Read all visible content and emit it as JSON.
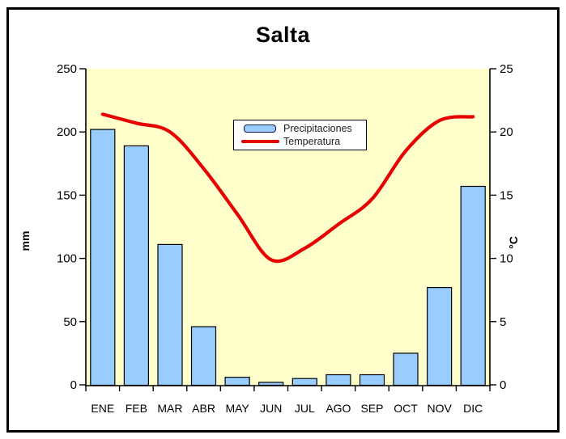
{
  "chart_data": {
    "type": "bar",
    "subtype": "bar-line-combo-climograph",
    "title": "Salta",
    "categories": [
      "ENE",
      "FEB",
      "MAR",
      "ABR",
      "MAY",
      "JUN",
      "JUL",
      "AGO",
      "SEP",
      "OCT",
      "NOV",
      "DIC"
    ],
    "series": [
      {
        "name": "Precipitaciones",
        "type": "bar",
        "axis": "left",
        "unit": "mm",
        "values": [
          202,
          189,
          111,
          46,
          6,
          2,
          5,
          8,
          8,
          25,
          77,
          157
        ]
      },
      {
        "name": "Temperatura",
        "type": "line",
        "axis": "right",
        "unit": "°C",
        "values": [
          21.4,
          20.7,
          20.0,
          17.1,
          13.5,
          9.9,
          10.8,
          12.7,
          14.7,
          18.5,
          20.9,
          21.2
        ]
      }
    ],
    "left_axis": {
      "label": "mm",
      "min": 0,
      "max": 250,
      "ticks": [
        0,
        50,
        100,
        150,
        200,
        250
      ]
    },
    "right_axis": {
      "label": "°C",
      "min": 0,
      "max": 25,
      "ticks": [
        0,
        5,
        10,
        15,
        20,
        25
      ]
    },
    "legend": {
      "position": "inside-top-center",
      "entries": [
        "Precipitaciones",
        "Temperatura"
      ]
    },
    "grid": "off",
    "colors": {
      "bar_fill": "#99CCFF",
      "bar_border": "#000000",
      "line": "#E60000",
      "plot_bg": "#FFFFCC",
      "axis": "#000000",
      "text": "#000000",
      "frame_border": "#000000",
      "background": "#FFFFFF"
    }
  }
}
